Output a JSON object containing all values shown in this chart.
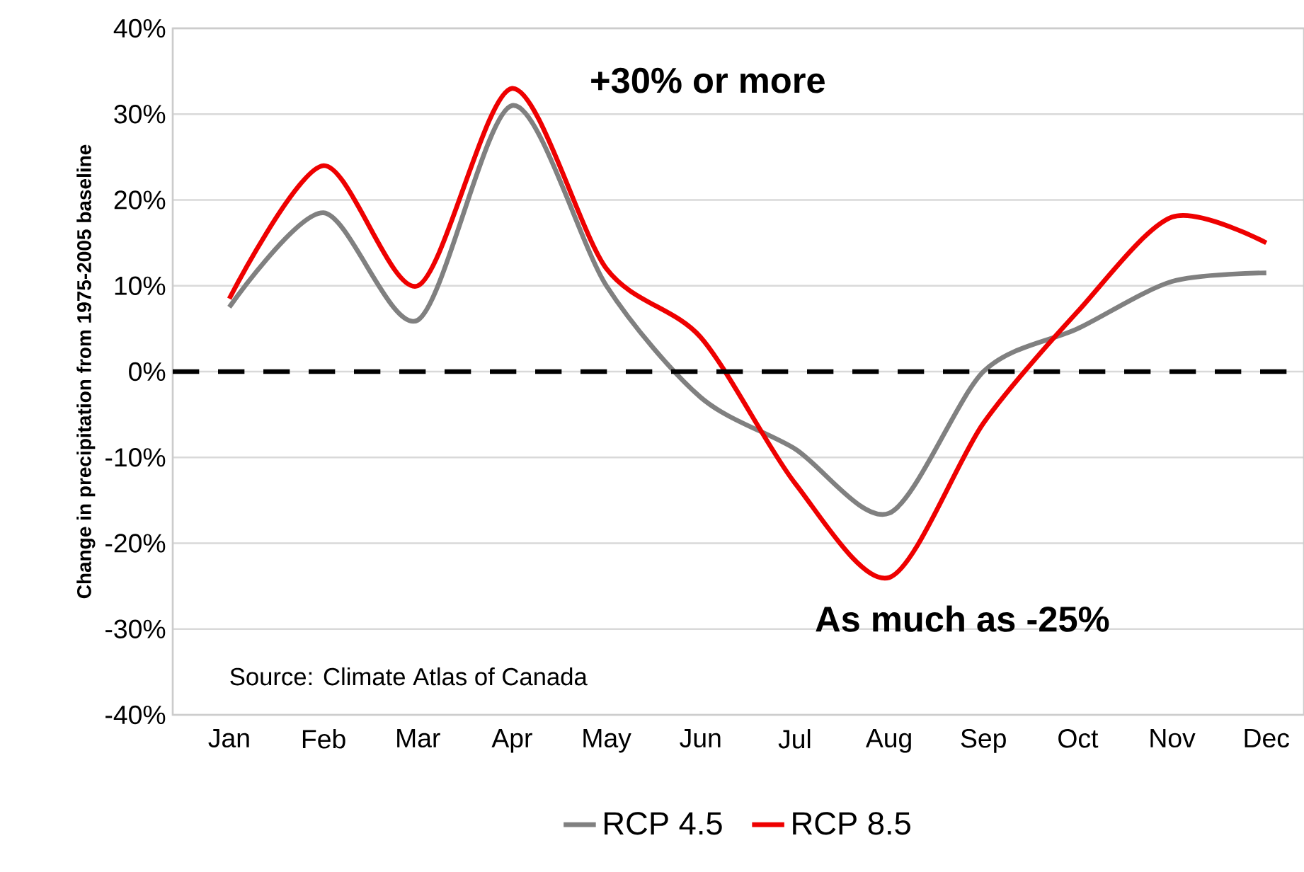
{
  "chart_data": {
    "type": "line",
    "ylabel": "Change in precipitation from 1975-2005 baseline",
    "categories": [
      "Jan",
      "Feb",
      "Mar",
      "Apr",
      "May",
      "Jun",
      "Jul",
      "Aug",
      "Sep",
      "Oct",
      "Nov",
      "Dec"
    ],
    "series": [
      {
        "name": "RCP 4.5",
        "color": "#808080",
        "values": [
          7.5,
          18.5,
          6,
          31,
          10,
          -3,
          -9,
          -16.5,
          0,
          5,
          10.5,
          11.5
        ]
      },
      {
        "name": "RCP 8.5",
        "color": "#ee0000",
        "values": [
          8.5,
          24,
          10,
          33,
          12,
          4,
          -13,
          -24,
          -6,
          7,
          18,
          15
        ]
      }
    ],
    "ylim": [
      -40,
      40
    ],
    "yticks": [
      {
        "value": -40,
        "label": "-40%"
      },
      {
        "value": -30,
        "label": "-30%"
      },
      {
        "value": -20,
        "label": "-20%"
      },
      {
        "value": -10,
        "label": "-10%"
      },
      {
        "value": 0,
        "label": "0%"
      },
      {
        "value": 10,
        "label": "10%"
      },
      {
        "value": 20,
        "label": "20%"
      },
      {
        "value": 30,
        "label": "30%"
      },
      {
        "value": 40,
        "label": "40%"
      }
    ],
    "grid": "y",
    "legend": "bottom",
    "marker": "none",
    "line_style": "solid",
    "ref_lines": [
      {
        "axis": "y",
        "value": 0,
        "color": "#000000",
        "line_style": "dashed"
      }
    ],
    "annotations": [
      "+30% or more",
      "As much as -25%",
      "Source:  Climate Atlas of Canada"
    ]
  }
}
